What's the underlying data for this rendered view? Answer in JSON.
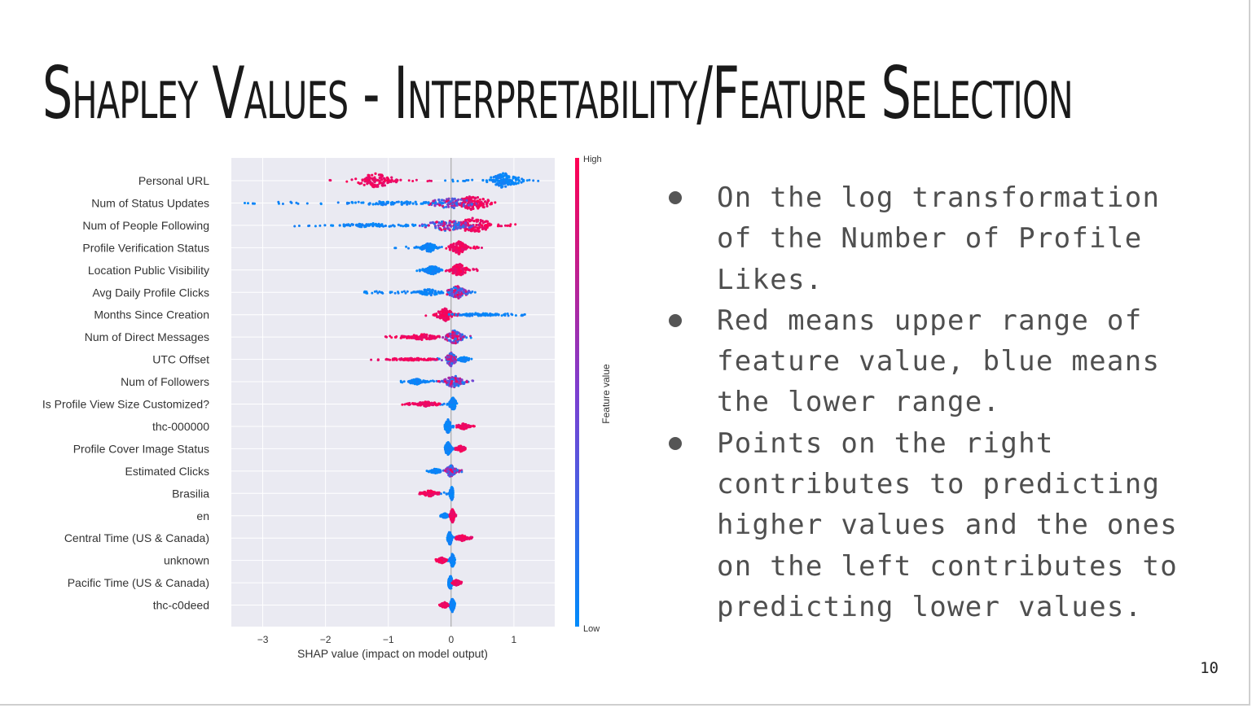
{
  "slide": {
    "title": "Shapley Values - Interpretability/Feature Selection",
    "page_number": "10",
    "bullets": [
      "On the log transformation of the Number of Profile Likes.",
      "Red means upper range of feature value,  blue means the lower range.",
      "Points on the right contributes to predicting higher values and the ones on the left contributes to predicting lower values."
    ]
  },
  "chart_data": {
    "type": "scatter",
    "subtype": "shap-beeswarm-summary",
    "xlabel": "SHAP value (impact on model output)",
    "xlim": [
      -3.5,
      1.65
    ],
    "xticks": [
      -3,
      -2,
      -1,
      0,
      1
    ],
    "xtick_labels": [
      "−3",
      "−2",
      "−1",
      "0",
      "1"
    ],
    "colorbar": {
      "label": "Feature value",
      "high_label": "High",
      "low_label": "Low",
      "high_color": "#ff0052",
      "low_color": "#008bfb"
    },
    "background": "#eaeaf2",
    "grid": true,
    "features": [
      {
        "name": "Personal URL",
        "clusters": [
          {
            "c": -1.2,
            "w": 0.5,
            "h": 0.9,
            "col": "high"
          },
          {
            "c": 0.85,
            "w": 0.4,
            "h": 0.95,
            "col": "low"
          }
        ],
        "min": -1.95,
        "max": 1.4
      },
      {
        "name": "Num of Status Updates",
        "clusters": [
          {
            "c": 0.35,
            "w": 0.45,
            "h": 0.9,
            "col": "high"
          },
          {
            "c": 0.0,
            "w": 0.6,
            "h": 0.7,
            "col": "mix"
          },
          {
            "c": -1.0,
            "w": 1.2,
            "h": 0.25,
            "col": "low"
          }
        ],
        "min": -3.3,
        "max": 0.7
      },
      {
        "name": "Num of People Following",
        "clusters": [
          {
            "c": 0.35,
            "w": 0.5,
            "h": 0.95,
            "col": "high"
          },
          {
            "c": -0.05,
            "w": 0.6,
            "h": 0.7,
            "col": "mix"
          },
          {
            "c": -1.2,
            "w": 1.0,
            "h": 0.25,
            "col": "low"
          }
        ],
        "min": -2.55,
        "max": 1.05
      },
      {
        "name": "Profile Verification Status",
        "clusters": [
          {
            "c": 0.12,
            "w": 0.22,
            "h": 0.8,
            "col": "high"
          },
          {
            "c": -0.35,
            "w": 0.2,
            "h": 0.55,
            "col": "low"
          }
        ],
        "min": -0.9,
        "max": 0.5
      },
      {
        "name": "Location Public Visibility",
        "clusters": [
          {
            "c": 0.12,
            "w": 0.2,
            "h": 0.8,
            "col": "high"
          },
          {
            "c": -0.3,
            "w": 0.2,
            "h": 0.55,
            "col": "low"
          }
        ],
        "min": -0.55,
        "max": 0.42
      },
      {
        "name": "Avg Daily Profile Clicks",
        "clusters": [
          {
            "c": 0.1,
            "w": 0.25,
            "h": 0.8,
            "col": "mix"
          },
          {
            "c": -0.35,
            "w": 0.35,
            "h": 0.4,
            "col": "low"
          }
        ],
        "min": -1.4,
        "max": 0.4
      },
      {
        "name": "Months Since Creation",
        "clusters": [
          {
            "c": -0.1,
            "w": 0.2,
            "h": 0.8,
            "col": "high"
          },
          {
            "c": 0.4,
            "w": 0.6,
            "h": 0.2,
            "col": "low"
          }
        ],
        "min": -0.45,
        "max": 1.2
      },
      {
        "name": "Num of Direct Messages",
        "clusters": [
          {
            "c": 0.05,
            "w": 0.22,
            "h": 0.85,
            "col": "mix"
          },
          {
            "c": -0.45,
            "w": 0.45,
            "h": 0.35,
            "col": "high"
          }
        ],
        "min": -1.05,
        "max": 0.35
      },
      {
        "name": "UTC Offset",
        "clusters": [
          {
            "c": 0.0,
            "w": 0.12,
            "h": 0.85,
            "col": "mix"
          },
          {
            "c": -0.6,
            "w": 0.6,
            "h": 0.15,
            "col": "high"
          },
          {
            "c": 0.2,
            "w": 0.15,
            "h": 0.3,
            "col": "low"
          }
        ],
        "min": -1.3,
        "max": 0.33
      },
      {
        "name": "Num of Followers",
        "clusters": [
          {
            "c": 0.05,
            "w": 0.25,
            "h": 0.75,
            "col": "mix"
          },
          {
            "c": -0.55,
            "w": 0.2,
            "h": 0.35,
            "col": "low"
          }
        ],
        "min": -0.8,
        "max": 0.48
      },
      {
        "name": "Is Profile View Size Customized?",
        "clusters": [
          {
            "c": 0.03,
            "w": 0.08,
            "h": 0.8,
            "col": "low"
          },
          {
            "c": -0.4,
            "w": 0.35,
            "h": 0.3,
            "col": "high"
          }
        ],
        "min": -0.78,
        "max": 0.12
      },
      {
        "name": "thc-000000",
        "clusters": [
          {
            "c": -0.05,
            "w": 0.07,
            "h": 0.85,
            "col": "low"
          },
          {
            "c": 0.2,
            "w": 0.15,
            "h": 0.35,
            "col": "high"
          }
        ],
        "min": -0.1,
        "max": 0.38
      },
      {
        "name": "Profile Cover Image Status",
        "clusters": [
          {
            "c": -0.05,
            "w": 0.07,
            "h": 0.85,
            "col": "low"
          },
          {
            "c": 0.15,
            "w": 0.12,
            "h": 0.35,
            "col": "high"
          }
        ],
        "min": -0.1,
        "max": 0.27
      },
      {
        "name": "Estimated Clicks",
        "clusters": [
          {
            "c": 0.0,
            "w": 0.12,
            "h": 0.75,
            "col": "mix"
          },
          {
            "c": -0.25,
            "w": 0.15,
            "h": 0.3,
            "col": "low"
          }
        ],
        "min": -0.4,
        "max": 0.17
      },
      {
        "name": "Brasilia",
        "clusters": [
          {
            "c": 0.01,
            "w": 0.04,
            "h": 0.85,
            "col": "low"
          },
          {
            "c": -0.35,
            "w": 0.17,
            "h": 0.4,
            "col": "high"
          }
        ],
        "min": -0.52,
        "max": 0.03
      },
      {
        "name": "en",
        "clusters": [
          {
            "c": 0.02,
            "w": 0.05,
            "h": 0.85,
            "col": "high"
          },
          {
            "c": -0.1,
            "w": 0.07,
            "h": 0.3,
            "col": "low"
          }
        ],
        "min": -0.17,
        "max": 0.08
      },
      {
        "name": "Central Time (US & Canada)",
        "clusters": [
          {
            "c": -0.02,
            "w": 0.05,
            "h": 0.85,
            "col": "low"
          },
          {
            "c": 0.17,
            "w": 0.17,
            "h": 0.35,
            "col": "high"
          }
        ],
        "min": -0.06,
        "max": 0.35
      },
      {
        "name": "unknown",
        "clusters": [
          {
            "c": 0.02,
            "w": 0.05,
            "h": 0.85,
            "col": "low"
          },
          {
            "c": -0.15,
            "w": 0.1,
            "h": 0.35,
            "col": "high"
          }
        ],
        "min": -0.25,
        "max": 0.07
      },
      {
        "name": "Pacific Time (US & Canada)",
        "clusters": [
          {
            "c": -0.01,
            "w": 0.05,
            "h": 0.85,
            "col": "low"
          },
          {
            "c": 0.08,
            "w": 0.1,
            "h": 0.35,
            "col": "high"
          }
        ],
        "min": -0.04,
        "max": 0.17
      },
      {
        "name": "thc-c0deed",
        "clusters": [
          {
            "c": 0.02,
            "w": 0.05,
            "h": 0.85,
            "col": "low"
          },
          {
            "c": -0.1,
            "w": 0.1,
            "h": 0.35,
            "col": "high"
          }
        ],
        "min": -0.2,
        "max": 0.06
      }
    ]
  }
}
